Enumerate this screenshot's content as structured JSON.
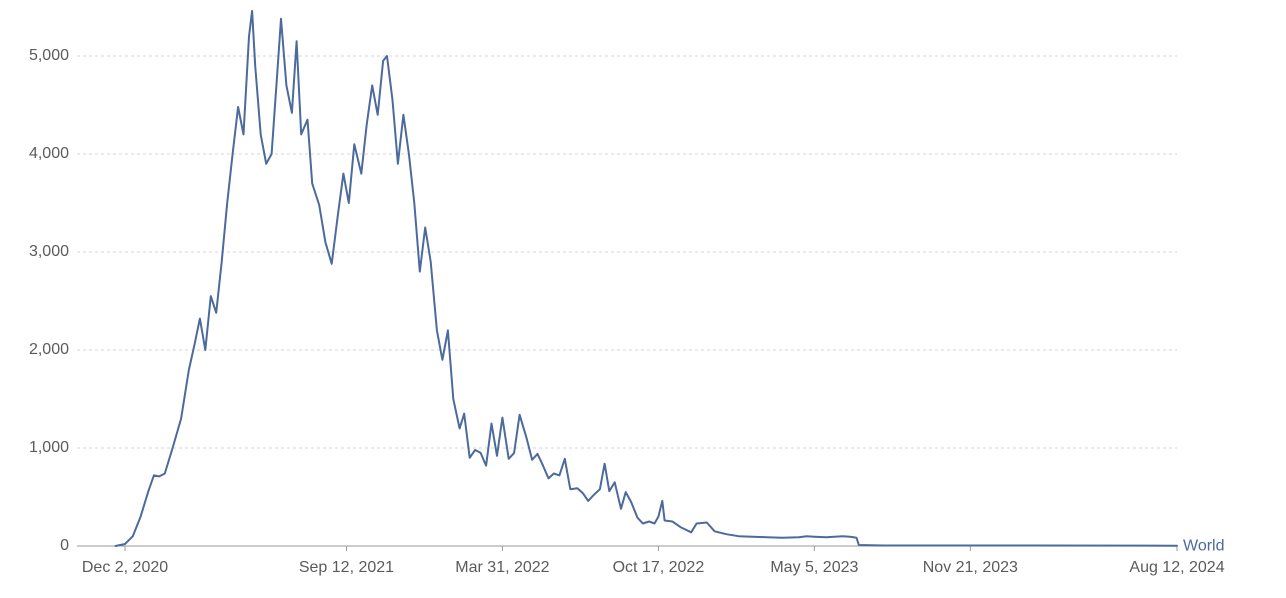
{
  "chart_data": {
    "type": "line",
    "title": "",
    "xlabel": "",
    "ylabel": "",
    "x_axis": {
      "start": "2020-11-20",
      "end": "2024-08-12",
      "ticks": [
        {
          "date": "2020-12-02",
          "label": "Dec 2, 2020"
        },
        {
          "date": "2021-09-12",
          "label": "Sep 12, 2021"
        },
        {
          "date": "2022-03-31",
          "label": "Mar 31, 2022"
        },
        {
          "date": "2022-10-17",
          "label": "Oct 17, 2022"
        },
        {
          "date": "2023-05-05",
          "label": "May 5, 2023"
        },
        {
          "date": "2023-11-21",
          "label": "Nov 21, 2023"
        },
        {
          "date": "2024-08-12",
          "label": "Aug 12, 2024"
        }
      ]
    },
    "y_axis": {
      "min": 0,
      "max": 5500,
      "ticks": [
        {
          "value": 0,
          "label": "0"
        },
        {
          "value": 1000,
          "label": "1,000"
        },
        {
          "value": 2000,
          "label": "2,000"
        },
        {
          "value": 3000,
          "label": "3,000"
        },
        {
          "value": 4000,
          "label": "4,000"
        },
        {
          "value": 5000,
          "label": "5,000"
        }
      ]
    },
    "grid": true,
    "legend": "end-of-line label",
    "series": [
      {
        "name": "World",
        "color": "#4c6a9c",
        "points": [
          [
            "2020-11-20",
            0
          ],
          [
            "2020-12-02",
            20
          ],
          [
            "2020-12-12",
            100
          ],
          [
            "2020-12-22",
            300
          ],
          [
            "2021-01-01",
            560
          ],
          [
            "2021-01-08",
            720
          ],
          [
            "2021-01-15",
            710
          ],
          [
            "2021-01-22",
            740
          ],
          [
            "2021-02-01",
            1000
          ],
          [
            "2021-02-12",
            1300
          ],
          [
            "2021-02-22",
            1800
          ],
          [
            "2021-03-01",
            2050
          ],
          [
            "2021-03-08",
            2320
          ],
          [
            "2021-03-15",
            2000
          ],
          [
            "2021-03-22",
            2550
          ],
          [
            "2021-03-29",
            2380
          ],
          [
            "2021-04-05",
            2900
          ],
          [
            "2021-04-12",
            3500
          ],
          [
            "2021-04-19",
            4000
          ],
          [
            "2021-04-26",
            4480
          ],
          [
            "2021-05-03",
            4200
          ],
          [
            "2021-05-10",
            5200
          ],
          [
            "2021-05-14",
            5460
          ],
          [
            "2021-05-18",
            4900
          ],
          [
            "2021-05-25",
            4200
          ],
          [
            "2021-06-01",
            3900
          ],
          [
            "2021-06-08",
            4000
          ],
          [
            "2021-06-15",
            4800
          ],
          [
            "2021-06-20",
            5380
          ],
          [
            "2021-06-27",
            4700
          ],
          [
            "2021-07-04",
            4420
          ],
          [
            "2021-07-10",
            5150
          ],
          [
            "2021-07-16",
            4200
          ],
          [
            "2021-07-24",
            4350
          ],
          [
            "2021-07-30",
            3700
          ],
          [
            "2021-08-08",
            3480
          ],
          [
            "2021-08-16",
            3100
          ],
          [
            "2021-08-24",
            2880
          ],
          [
            "2021-09-01",
            3380
          ],
          [
            "2021-09-08",
            3800
          ],
          [
            "2021-09-15",
            3500
          ],
          [
            "2021-09-22",
            4100
          ],
          [
            "2021-10-01",
            3800
          ],
          [
            "2021-10-08",
            4300
          ],
          [
            "2021-10-15",
            4700
          ],
          [
            "2021-10-22",
            4400
          ],
          [
            "2021-10-29",
            4950
          ],
          [
            "2021-11-03",
            5000
          ],
          [
            "2021-11-10",
            4550
          ],
          [
            "2021-11-17",
            3900
          ],
          [
            "2021-11-24",
            4400
          ],
          [
            "2021-12-01",
            4000
          ],
          [
            "2021-12-08",
            3500
          ],
          [
            "2021-12-15",
            2800
          ],
          [
            "2021-12-22",
            3250
          ],
          [
            "2021-12-29",
            2900
          ],
          [
            "2022-01-06",
            2200
          ],
          [
            "2022-01-13",
            1900
          ],
          [
            "2022-01-20",
            2200
          ],
          [
            "2022-01-27",
            1500
          ],
          [
            "2022-02-04",
            1200
          ],
          [
            "2022-02-10",
            1350
          ],
          [
            "2022-02-17",
            900
          ],
          [
            "2022-02-24",
            980
          ],
          [
            "2022-03-03",
            950
          ],
          [
            "2022-03-10",
            820
          ],
          [
            "2022-03-17",
            1250
          ],
          [
            "2022-03-24",
            920
          ],
          [
            "2022-03-31",
            1310
          ],
          [
            "2022-04-08",
            890
          ],
          [
            "2022-04-15",
            950
          ],
          [
            "2022-04-22",
            1340
          ],
          [
            "2022-05-01",
            1100
          ],
          [
            "2022-05-08",
            880
          ],
          [
            "2022-05-15",
            940
          ],
          [
            "2022-05-22",
            820
          ],
          [
            "2022-05-29",
            690
          ],
          [
            "2022-06-05",
            740
          ],
          [
            "2022-06-12",
            720
          ],
          [
            "2022-06-19",
            890
          ],
          [
            "2022-06-26",
            580
          ],
          [
            "2022-07-05",
            590
          ],
          [
            "2022-07-12",
            540
          ],
          [
            "2022-07-19",
            460
          ],
          [
            "2022-07-26",
            520
          ],
          [
            "2022-08-03",
            580
          ],
          [
            "2022-08-09",
            840
          ],
          [
            "2022-08-15",
            560
          ],
          [
            "2022-08-22",
            650
          ],
          [
            "2022-08-30",
            380
          ],
          [
            "2022-09-05",
            550
          ],
          [
            "2022-09-12",
            450
          ],
          [
            "2022-09-20",
            290
          ],
          [
            "2022-09-27",
            230
          ],
          [
            "2022-10-05",
            250
          ],
          [
            "2022-10-12",
            230
          ],
          [
            "2022-10-17",
            300
          ],
          [
            "2022-10-22",
            460
          ],
          [
            "2022-10-25",
            260
          ],
          [
            "2022-11-04",
            250
          ],
          [
            "2022-11-15",
            190
          ],
          [
            "2022-11-28",
            140
          ],
          [
            "2022-12-05",
            230
          ],
          [
            "2022-12-18",
            240
          ],
          [
            "2022-12-28",
            150
          ],
          [
            "2023-01-12",
            120
          ],
          [
            "2023-01-28",
            100
          ],
          [
            "2023-02-15",
            95
          ],
          [
            "2023-03-05",
            90
          ],
          [
            "2023-03-25",
            85
          ],
          [
            "2023-04-15",
            90
          ],
          [
            "2023-04-25",
            100
          ],
          [
            "2023-05-05",
            95
          ],
          [
            "2023-05-20",
            90
          ],
          [
            "2023-06-10",
            100
          ],
          [
            "2023-06-20",
            95
          ],
          [
            "2023-06-28",
            85
          ],
          [
            "2023-07-01",
            10
          ],
          [
            "2023-08-01",
            5
          ],
          [
            "2023-10-01",
            5
          ],
          [
            "2024-02-01",
            5
          ],
          [
            "2024-08-12",
            3
          ]
        ]
      }
    ]
  }
}
